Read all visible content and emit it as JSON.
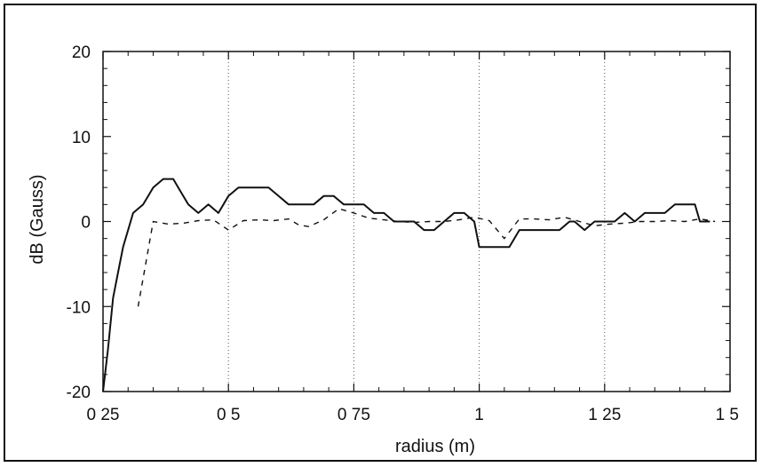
{
  "chart_data": {
    "type": "line",
    "title": "",
    "xlabel": "radius  (m)",
    "ylabel": "dB (Gauss)",
    "xlim": [
      0.25,
      1.5
    ],
    "ylim": [
      -20,
      20
    ],
    "x_ticks": [
      0.25,
      0.5,
      0.75,
      1,
      1.25,
      1.5
    ],
    "x_tick_labels": [
      "0 25",
      "0 5",
      "0 75",
      "1",
      "1 25",
      "1 5"
    ],
    "y_ticks": [
      -20,
      -10,
      0,
      10,
      20
    ],
    "y_tick_labels": [
      "-20",
      "-10",
      "0",
      "10",
      "20"
    ],
    "grid": "vertical dotted",
    "legend": "none",
    "series": [
      {
        "style": "solid",
        "color": "#111111",
        "x": [
          0.25,
          0.26,
          0.27,
          0.28,
          0.29,
          0.31,
          0.33,
          0.35,
          0.37,
          0.39,
          0.4,
          0.42,
          0.44,
          0.46,
          0.48,
          0.5,
          0.52,
          0.55,
          0.58,
          0.6,
          0.62,
          0.65,
          0.67,
          0.69,
          0.71,
          0.73,
          0.75,
          0.77,
          0.79,
          0.81,
          0.83,
          0.85,
          0.87,
          0.89,
          0.91,
          0.93,
          0.95,
          0.97,
          0.99,
          1.0,
          1.02,
          1.04,
          1.06,
          1.08,
          1.1,
          1.12,
          1.14,
          1.16,
          1.18,
          1.19,
          1.21,
          1.23,
          1.25,
          1.27,
          1.29,
          1.31,
          1.33,
          1.35,
          1.37,
          1.39,
          1.41,
          1.43,
          1.44,
          1.46
        ],
        "y": [
          -20,
          -15,
          -9,
          -6,
          -3,
          1,
          2,
          4,
          5,
          5,
          4,
          2,
          1,
          2,
          1,
          3,
          4,
          4,
          4,
          3,
          2,
          2,
          2,
          3,
          3,
          2,
          2,
          2,
          1,
          1,
          0,
          0,
          0,
          -1,
          -1,
          0,
          1,
          1,
          0,
          -3,
          -3,
          -3,
          -3,
          -1,
          -1,
          -1,
          -1,
          -1,
          0,
          0,
          -1,
          0,
          0,
          0,
          1,
          0,
          1,
          1,
          1,
          2,
          2,
          2,
          0,
          0
        ]
      },
      {
        "style": "dashed",
        "color": "#111111",
        "x": [
          0.32,
          0.35,
          0.38,
          0.41,
          0.44,
          0.47,
          0.5,
          0.53,
          0.56,
          0.59,
          0.62,
          0.64,
          0.66,
          0.69,
          0.72,
          0.75,
          0.78,
          0.81,
          0.84,
          0.87,
          0.9,
          0.93,
          0.96,
          0.99,
          1.02,
          1.05,
          1.08,
          1.11,
          1.14,
          1.17,
          1.2,
          1.23,
          1.26,
          1.29,
          1.32,
          1.35,
          1.38,
          1.41,
          1.44,
          1.47
        ],
        "y": [
          -10,
          0,
          -0.3,
          -0.2,
          0.1,
          0.2,
          -1,
          0.1,
          0.2,
          0.1,
          0.3,
          -0.4,
          -0.6,
          0.2,
          1.5,
          1,
          0.4,
          0.2,
          0,
          -0.1,
          0,
          0,
          0.2,
          0.5,
          0.1,
          -2,
          0.3,
          0.3,
          0.2,
          0.5,
          0,
          -0.5,
          -0.3,
          -0.2,
          0,
          0,
          0.1,
          0,
          0.3,
          0
        ]
      }
    ]
  }
}
